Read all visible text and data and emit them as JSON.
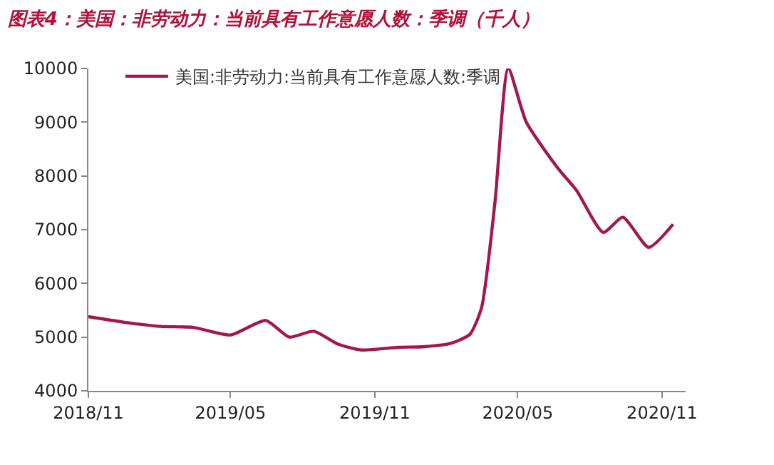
{
  "chart_data": {
    "type": "line",
    "title": "图表4：美国：非劳动力：当前具有工作意愿人数：季调（千人）",
    "x": [
      "2018-11-01",
      "2018-12-15",
      "2019-02-01",
      "2019-03-15",
      "2019-05-01",
      "2019-06-15",
      "2019-07-15",
      "2019-08-15",
      "2019-09-15",
      "2019-10-15",
      "2019-12-01",
      "2020-01-01",
      "2020-02-05",
      "2020-03-01",
      "2020-03-16",
      "2020-04-02",
      "2020-04-19",
      "2020-05-12",
      "2020-06-22",
      "2020-07-15",
      "2020-08-18",
      "2020-09-12",
      "2020-10-15",
      "2020-11-15"
    ],
    "series": [
      {
        "name": "美国:非劳动力:当前具有工作意愿人数:季调",
        "color": "#a3174e",
        "values": [
          5380,
          5280,
          5200,
          5180,
          5040,
          5310,
          5000,
          5110,
          4870,
          4760,
          4810,
          4820,
          4880,
          5050,
          5550,
          7500,
          10000,
          9000,
          8130,
          7730,
          6950,
          7230,
          6670,
          7100
        ]
      }
    ],
    "xlim": [
      "2018-11-01",
      "2020-12-01"
    ],
    "xticks": [
      {
        "value": "2018-11-01",
        "label": "2018/11"
      },
      {
        "value": "2019-05-01",
        "label": "2019/05"
      },
      {
        "value": "2019-11-01",
        "label": "2019/11"
      },
      {
        "value": "2020-05-01",
        "label": "2020/05"
      },
      {
        "value": "2020-11-01",
        "label": "2020/11"
      }
    ],
    "ylim": [
      4000,
      10000
    ],
    "yticks": [
      4000,
      5000,
      6000,
      7000,
      8000,
      9000,
      10000
    ],
    "grid": false,
    "legend": "top",
    "marker": "none",
    "line_style": "solid"
  }
}
